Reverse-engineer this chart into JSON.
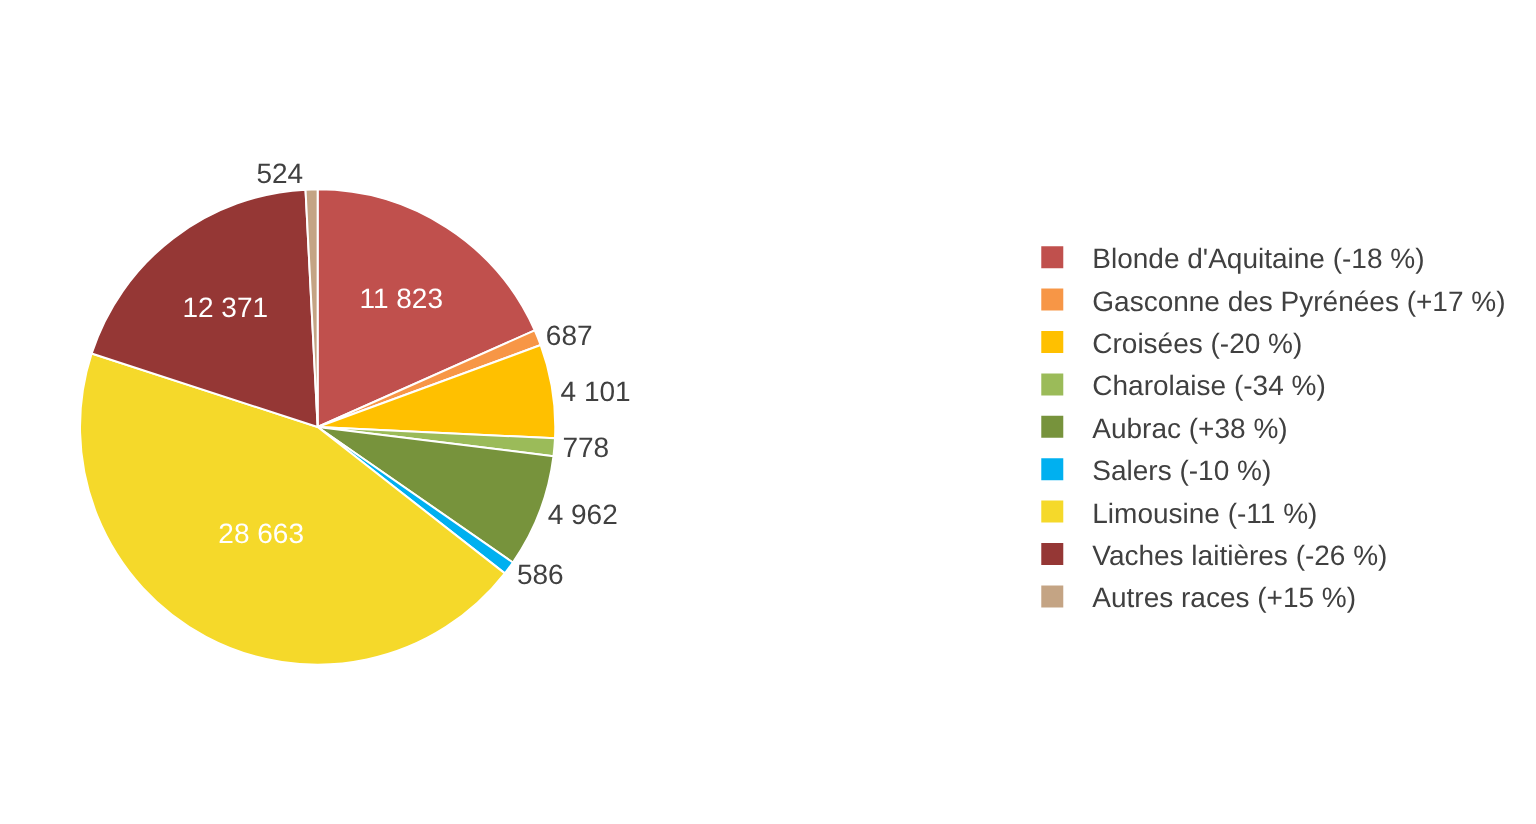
{
  "chart_data": {
    "type": "pie",
    "categories": [
      "Blonde d'Aquitaine (-18 %)",
      "Gasconne des Pyrénées (+17 %)",
      "Croisées (-20 %)",
      "Charolaise (-34 %)",
      "Aubrac (+38 %)",
      "Salers (-10 %)",
      "Limousine (-11 %)",
      "Vaches laitières (-26 %)",
      "Autres races (+15 %)"
    ],
    "values": [
      11823,
      687,
      4101,
      778,
      4962,
      586,
      28663,
      12371,
      524
    ],
    "value_labels": [
      "11 823",
      "687",
      "4 101",
      "778",
      "4 962",
      "586",
      "28 663",
      "12 371",
      "524"
    ],
    "colors": [
      "#c0504d",
      "#f79646",
      "#ffc000",
      "#9bbb59",
      "#77933c",
      "#00b0f0",
      "#f5d92a",
      "#953735",
      "#c4a484"
    ],
    "legend": "right"
  }
}
